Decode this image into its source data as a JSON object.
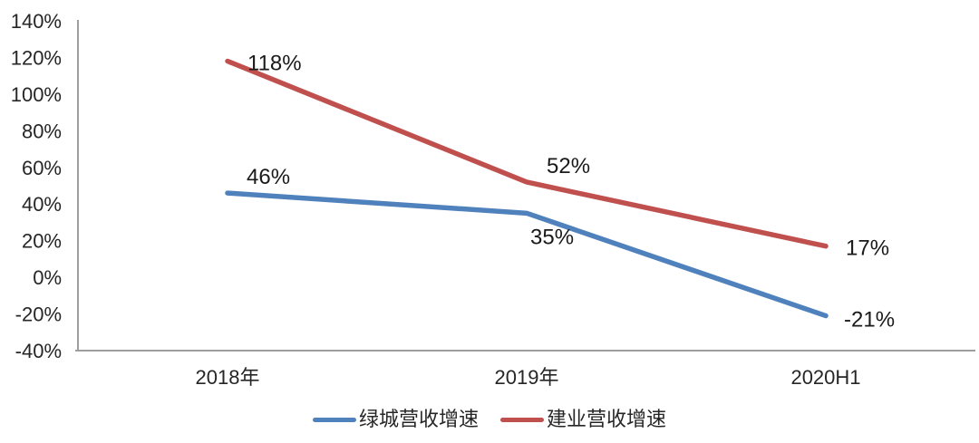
{
  "chart_data": {
    "type": "line",
    "title": "",
    "xlabel": "",
    "ylabel": "",
    "categories": [
      "2018年",
      "2019年",
      "2020H1"
    ],
    "series": [
      {
        "name": "绿城营收增速",
        "color": "#4F81BD",
        "values": [
          46,
          35,
          -21
        ],
        "labels": [
          "46%",
          "35%",
          "-21%"
        ]
      },
      {
        "name": "建业营收增速",
        "color": "#C0504D",
        "values": [
          118,
          52,
          17
        ],
        "labels": [
          "118%",
          "52%",
          "17%"
        ]
      }
    ],
    "ylim": [
      -40,
      140
    ],
    "y_tick_step": 20,
    "y_ticks": [
      "140%",
      "120%",
      "100%",
      "80%",
      "60%",
      "40%",
      "20%",
      "0%",
      "-20%",
      "-40%"
    ],
    "grid": false,
    "legend_position": "bottom-center",
    "axis_color": "#9E9E9E",
    "text_color": "#262626",
    "data_label_color": "#1a1a1a"
  }
}
